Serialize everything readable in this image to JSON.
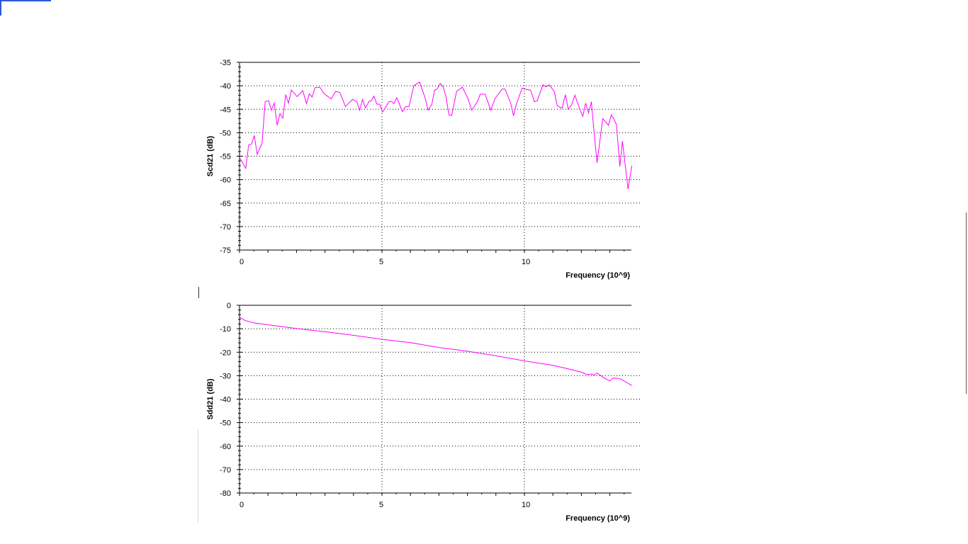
{
  "chart_data": [
    {
      "type": "line",
      "title": "",
      "xlabel": "Frequency (10^9)",
      "ylabel": "Scd21 (dB)",
      "xlim": [
        0,
        13.77
      ],
      "ylim": [
        -75,
        -35
      ],
      "xticks": [
        "0",
        "5",
        "10"
      ],
      "xtick_values": [
        0,
        5,
        10
      ],
      "yticks": [
        "-35",
        "-40",
        "-45",
        "-50",
        "-55",
        "-60",
        "-65",
        "-70",
        "-75"
      ],
      "ytick_values": [
        -35,
        -40,
        -45,
        -50,
        -55,
        -60,
        -65,
        -70,
        -75
      ],
      "grid": true,
      "color": "#ff00ff",
      "series": [
        {
          "name": "Scd21",
          "x": [
            0,
            0.22,
            0.32,
            0.42,
            0.52,
            0.62,
            0.79,
            0.9,
            1.02,
            1.12,
            1.22,
            1.32,
            1.42,
            1.52,
            1.62,
            1.72,
            1.82,
            2.02,
            2.22,
            2.35,
            2.45,
            2.55,
            2.65,
            2.82,
            2.97,
            3.22,
            3.37,
            3.52,
            3.72,
            3.97,
            4.12,
            4.22,
            4.32,
            4.42,
            4.55,
            4.62,
            4.72,
            4.82,
            4.92,
            5.02,
            5.25,
            5.32,
            5.42,
            5.52,
            5.72,
            5.82,
            5.95,
            6.12,
            6.32,
            6.52,
            6.62,
            6.75,
            6.85,
            6.92,
            7.05,
            7.15,
            7.25,
            7.35,
            7.45,
            7.62,
            7.82,
            8.02,
            8.15,
            8.35,
            8.45,
            8.62,
            8.82,
            8.97,
            9.22,
            9.32,
            9.52,
            9.62,
            9.72,
            9.92,
            10.07,
            10.22,
            10.35,
            10.45,
            10.65,
            10.75,
            10.87,
            11.05,
            11.15,
            11.32,
            11.44,
            11.54,
            11.67,
            11.77,
            11.97,
            12.05,
            12.15,
            12.25,
            12.35,
            12.45,
            12.55,
            12.75,
            12.95,
            13.05,
            13.15,
            13.23,
            13.35,
            13.44,
            13.5,
            13.64,
            13.77
          ],
          "y": [
            -55.3,
            -57.6,
            -52.6,
            -52.4,
            -50.6,
            -54.6,
            -52.2,
            -43.4,
            -43.2,
            -45.2,
            -43.7,
            -48.4,
            -45.9,
            -46.9,
            -41.9,
            -43.7,
            -40.9,
            -42.3,
            -41,
            -43.8,
            -41.7,
            -42.4,
            -40.4,
            -40.3,
            -41.7,
            -42.8,
            -41.2,
            -41.4,
            -44.4,
            -42.9,
            -43.4,
            -45.2,
            -42.9,
            -44.7,
            -43.3,
            -43.3,
            -42.2,
            -43.9,
            -43.9,
            -45.6,
            -43.4,
            -43.3,
            -43.8,
            -42.5,
            -45.5,
            -44.5,
            -44.4,
            -40,
            -39.2,
            -42.7,
            -45.2,
            -43.9,
            -40.9,
            -40.8,
            -39.5,
            -40.2,
            -42.4,
            -46.2,
            -46.3,
            -41.2,
            -40.3,
            -42.7,
            -45.2,
            -43.4,
            -41.8,
            -41.8,
            -45.2,
            -42.7,
            -40.7,
            -40.7,
            -43.7,
            -46.4,
            -43.9,
            -40.5,
            -40.8,
            -40.9,
            -43.4,
            -43.2,
            -39.8,
            -40.2,
            -39.8,
            -41.2,
            -44.2,
            -44.8,
            -41.9,
            -45,
            -43.9,
            -42,
            -45.4,
            -46.5,
            -43.7,
            -45.8,
            -43.4,
            -50.2,
            -56.4,
            -47,
            -48.4,
            -46.2,
            -47.2,
            -48.2,
            -57.2,
            -51.8,
            -54.9,
            -62,
            -57
          ]
        }
      ]
    },
    {
      "type": "line",
      "title": "",
      "xlabel": "Frequency (10^9)",
      "ylabel": "Sdd21 (dB)",
      "xlim": [
        0,
        13.77
      ],
      "ylim": [
        -80,
        0
      ],
      "xticks": [
        "0",
        "5",
        "10"
      ],
      "xtick_values": [
        0,
        5,
        10
      ],
      "yticks": [
        "0",
        "-10",
        "-20",
        "-30",
        "-40",
        "-50",
        "-60",
        "-70",
        "-80"
      ],
      "ytick_values": [
        0,
        -10,
        -20,
        -30,
        -40,
        -50,
        -60,
        -70,
        -80
      ],
      "grid": true,
      "color": "#ff00ff",
      "series": [
        {
          "name": "Sdd21",
          "x": [
            0,
            0.2,
            0.5,
            1,
            1.5,
            2,
            3,
            4,
            5,
            6,
            7,
            8,
            9,
            10,
            11,
            11.5,
            12,
            12.2,
            12.35,
            12.45,
            12.55,
            12.8,
            13.0,
            13.1,
            13.2,
            13.4,
            13.77
          ],
          "y": [
            -5,
            -6.5,
            -7.5,
            -8.3,
            -9.1,
            -9.9,
            -11.3,
            -12.8,
            -14.5,
            -15.9,
            -18,
            -19.6,
            -21.5,
            -23.7,
            -25.6,
            -27,
            -28.5,
            -29.6,
            -29.3,
            -29.8,
            -28.9,
            -31,
            -32.2,
            -31.1,
            -31,
            -31.5,
            -34.2
          ]
        }
      ]
    }
  ]
}
